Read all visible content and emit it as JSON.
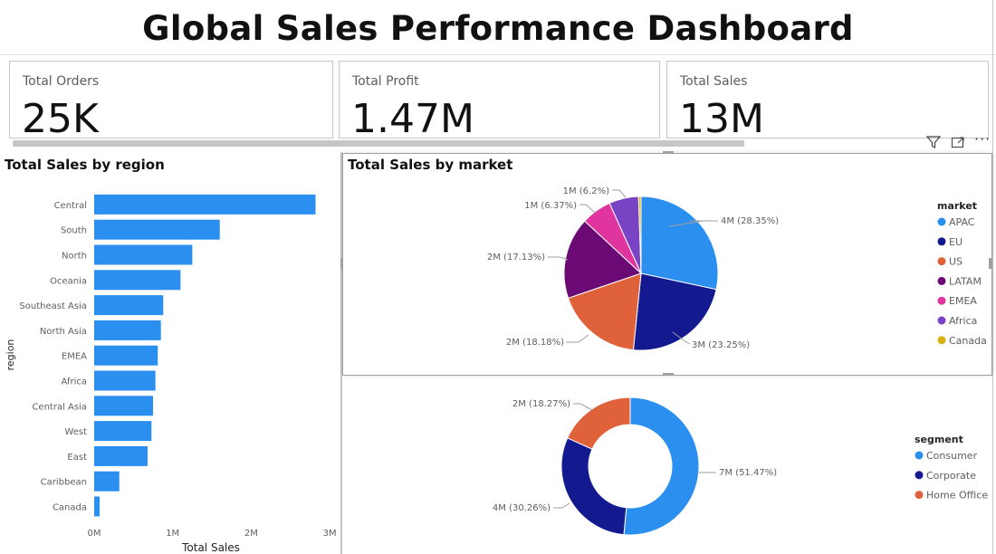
{
  "dashboard": {
    "title": "Global Sales Performance Dashboard"
  },
  "cards": [
    {
      "label": "Total Orders",
      "value": "25K"
    },
    {
      "label": "Total Profit",
      "value": "1.47M"
    },
    {
      "label": "Total Sales",
      "value": "13M"
    }
  ],
  "toolbar": {
    "filter_icon": "filter-icon",
    "focus_icon": "focus-mode-icon",
    "more_icon": "more-options-icon"
  },
  "colors": {
    "bar": "#2b8ff0",
    "apac": "#2b8ff0",
    "eu": "#13198f",
    "us": "#e0623a",
    "latam": "#6b0a74",
    "emea": "#e0359f",
    "africa": "#7844c4",
    "canada": "#d9b410"
  },
  "chart_data": [
    {
      "type": "bar",
      "orientation": "horizontal",
      "title": "Total Sales by region",
      "ylabel": "region",
      "xlabel": "Total Sales",
      "categories": [
        "Central",
        "South",
        "North",
        "Oceania",
        "Southeast Asia",
        "North Asia",
        "EMEA",
        "Africa",
        "Central Asia",
        "West",
        "East",
        "Caribbean",
        "Canada"
      ],
      "values": [
        2.82,
        1.6,
        1.25,
        1.1,
        0.88,
        0.85,
        0.81,
        0.78,
        0.75,
        0.73,
        0.68,
        0.32,
        0.07
      ],
      "xlim": [
        0,
        3
      ],
      "xticks": [
        "0M",
        "1M",
        "2M",
        "3M"
      ],
      "grid": false
    },
    {
      "type": "pie",
      "title": "Total Sales by market",
      "legend_title": "market",
      "legend_position": "right",
      "slices": [
        {
          "name": "APAC",
          "value": 28.35,
          "label": "4M (28.35%)",
          "color": "#2b8ff0"
        },
        {
          "name": "EU",
          "value": 23.25,
          "label": "3M (23.25%)",
          "color": "#13198f"
        },
        {
          "name": "US",
          "value": 18.18,
          "label": "2M (18.18%)",
          "color": "#e0623a"
        },
        {
          "name": "LATAM",
          "value": 17.13,
          "label": "2M (17.13%)",
          "color": "#6b0a74"
        },
        {
          "name": "EMEA",
          "value": 6.37,
          "label": "1M (6.37%)",
          "color": "#e0359f"
        },
        {
          "name": "Africa",
          "value": 6.2,
          "label": "1M (6.2%)",
          "color": "#7844c4"
        },
        {
          "name": "Canada",
          "value": 0.52,
          "label": "",
          "color": "#d9b410"
        }
      ]
    },
    {
      "type": "donut",
      "title": "",
      "legend_title": "segment",
      "legend_position": "right",
      "slices": [
        {
          "name": "Consumer",
          "value": 51.47,
          "label": "7M (51.47%)",
          "color": "#2b8ff0"
        },
        {
          "name": "Corporate",
          "value": 30.26,
          "label": "4M (30.26%)",
          "color": "#13198f"
        },
        {
          "name": "Home Office",
          "value": 18.27,
          "label": "2M (18.27%)",
          "color": "#e0623a"
        }
      ]
    }
  ]
}
